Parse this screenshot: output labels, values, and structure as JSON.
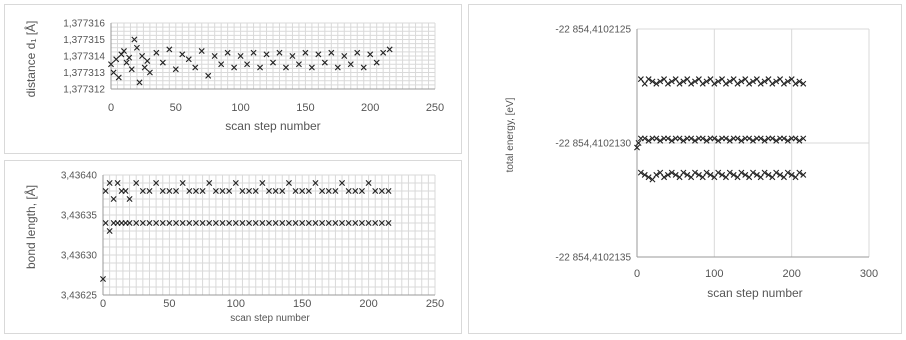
{
  "chart_data": [
    {
      "id": "distance",
      "type": "scatter",
      "xlabel": "scan step number",
      "ylabel": "distance d₁ [Å]",
      "xlim": [
        0,
        250
      ],
      "ylim": [
        1.377312,
        1.377316
      ],
      "xticks": [
        0,
        50,
        100,
        150,
        200,
        250
      ],
      "xtick_labels": [
        "0",
        "50",
        "100",
        "150",
        "200",
        "250"
      ],
      "yticks": [
        1.377312,
        1.377313,
        1.377314,
        1.377315,
        1.377316
      ],
      "ytick_labels": [
        "1,377312",
        "1,377313",
        "1,377314",
        "1,377315",
        "1,377316"
      ],
      "grid": true,
      "marker": "x",
      "series": [
        {
          "x": [
            0,
            2,
            4,
            6,
            8,
            10,
            12,
            14,
            16,
            18,
            20,
            22,
            24,
            26,
            28,
            30,
            35,
            40,
            45,
            50,
            55,
            60,
            65,
            70,
            75,
            80,
            85,
            90,
            95,
            100,
            105,
            110,
            115,
            120,
            125,
            130,
            135,
            140,
            145,
            150,
            155,
            160,
            165,
            170,
            175,
            180,
            185,
            190,
            195,
            200,
            205,
            210,
            215
          ],
          "y": [
            1.3773135,
            1.377313,
            1.3773138,
            1.3773127,
            1.3773141,
            1.3773143,
            1.3773136,
            1.3773139,
            1.3773132,
            1.377315,
            1.3773145,
            1.3773124,
            1.377314,
            1.3773133,
            1.3773137,
            1.377313,
            1.3773142,
            1.3773136,
            1.3773144,
            1.3773132,
            1.3773141,
            1.3773138,
            1.3773133,
            1.3773143,
            1.3773128,
            1.377314,
            1.3773135,
            1.3773142,
            1.3773133,
            1.377314,
            1.3773135,
            1.3773142,
            1.3773133,
            1.3773141,
            1.3773136,
            1.3773142,
            1.3773133,
            1.377314,
            1.3773135,
            1.3773142,
            1.3773133,
            1.3773141,
            1.3773136,
            1.3773142,
            1.3773133,
            1.377314,
            1.3773135,
            1.3773142,
            1.3773133,
            1.3773141,
            1.3773136,
            1.3773142,
            1.3773144
          ]
        }
      ]
    },
    {
      "id": "bond",
      "type": "scatter",
      "xlabel": "scan step number",
      "ylabel": "bond length, [Å]",
      "xlim": [
        0,
        250
      ],
      "ylim": [
        3.43625,
        3.4364
      ],
      "xticks": [
        0,
        50,
        100,
        150,
        200,
        250
      ],
      "xtick_labels": [
        "0",
        "50",
        "100",
        "150",
        "200",
        "250"
      ],
      "yticks": [
        3.43625,
        3.4363,
        3.43635,
        3.4364
      ],
      "ytick_labels": [
        "3,43625",
        "3,43630",
        "3,43635",
        "3,43640"
      ],
      "grid": true,
      "marker": "x",
      "series": [
        {
          "x": [
            0,
            2,
            5,
            8,
            11,
            14,
            17,
            20,
            25,
            30,
            35,
            40,
            45,
            50,
            55,
            60,
            65,
            70,
            75,
            80,
            85,
            90,
            95,
            100,
            105,
            110,
            115,
            120,
            125,
            130,
            135,
            140,
            145,
            150,
            155,
            160,
            165,
            170,
            175,
            180,
            185,
            190,
            195,
            200,
            205,
            210,
            215
          ],
          "y": [
            3.43627,
            3.43638,
            3.43639,
            3.43637,
            3.43639,
            3.43638,
            3.43638,
            3.43637,
            3.43639,
            3.43638,
            3.43638,
            3.43639,
            3.43638,
            3.43638,
            3.43638,
            3.43639,
            3.43638,
            3.43638,
            3.43638,
            3.43639,
            3.43638,
            3.43638,
            3.43638,
            3.43639,
            3.43638,
            3.43638,
            3.43638,
            3.43639,
            3.43638,
            3.43638,
            3.43638,
            3.43639,
            3.43638,
            3.43638,
            3.43638,
            3.43639,
            3.43638,
            3.43638,
            3.43638,
            3.43639,
            3.43638,
            3.43638,
            3.43638,
            3.43639,
            3.43638,
            3.43638,
            3.43638
          ]
        },
        {
          "x": [
            2,
            5,
            8,
            11,
            14,
            17,
            20,
            25,
            30,
            35,
            40,
            45,
            50,
            55,
            60,
            65,
            70,
            75,
            80,
            85,
            90,
            95,
            100,
            105,
            110,
            115,
            120,
            125,
            130,
            135,
            140,
            145,
            150,
            155,
            160,
            165,
            170,
            175,
            180,
            185,
            190,
            195,
            200,
            205,
            210,
            215
          ],
          "y": [
            3.43634,
            3.43633,
            3.43634,
            3.43634,
            3.43634,
            3.43634,
            3.43634,
            3.43634,
            3.43634,
            3.43634,
            3.43634,
            3.43634,
            3.43634,
            3.43634,
            3.43634,
            3.43634,
            3.43634,
            3.43634,
            3.43634,
            3.43634,
            3.43634,
            3.43634,
            3.43634,
            3.43634,
            3.43634,
            3.43634,
            3.43634,
            3.43634,
            3.43634,
            3.43634,
            3.43634,
            3.43634,
            3.43634,
            3.43634,
            3.43634,
            3.43634,
            3.43634,
            3.43634,
            3.43634,
            3.43634,
            3.43634,
            3.43634,
            3.43634,
            3.43634,
            3.43634,
            3.43634
          ]
        }
      ]
    },
    {
      "id": "energy",
      "type": "scatter",
      "xlabel": "scan step number",
      "ylabel": "total energy, [eV]",
      "xlim": [
        0,
        300
      ],
      "ylim": [
        -22854.4102135,
        -22854.4102125
      ],
      "xticks": [
        0,
        100,
        200,
        300
      ],
      "xtick_labels": [
        "0",
        "100",
        "200",
        "300"
      ],
      "yticks": [
        -22854.4102125,
        -22854.410213,
        -22854.4102135
      ],
      "ytick_labels": [
        "-22 854,4102125",
        "-22 854,4102130",
        "-22 854,4102135"
      ],
      "grid": true,
      "marker": "x",
      "series": [
        {
          "x": [
            5,
            10,
            15,
            20,
            25,
            30,
            35,
            40,
            45,
            50,
            55,
            60,
            65,
            70,
            75,
            80,
            85,
            90,
            95,
            100,
            105,
            110,
            115,
            120,
            125,
            130,
            135,
            140,
            145,
            150,
            155,
            160,
            165,
            170,
            175,
            180,
            185,
            190,
            195,
            200,
            205,
            210,
            215
          ],
          "y": [
            -22854.41021272,
            -22854.41021274,
            -22854.41021272,
            -22854.41021273,
            -22854.41021274,
            -22854.41021273,
            -22854.41021272,
            -22854.41021274,
            -22854.41021273,
            -22854.41021272,
            -22854.41021274,
            -22854.41021273,
            -22854.41021272,
            -22854.41021274,
            -22854.41021273,
            -22854.41021272,
            -22854.41021274,
            -22854.41021273,
            -22854.41021272,
            -22854.41021274,
            -22854.41021273,
            -22854.41021272,
            -22854.41021274,
            -22854.41021273,
            -22854.41021272,
            -22854.41021274,
            -22854.41021273,
            -22854.41021272,
            -22854.41021274,
            -22854.41021273,
            -22854.41021272,
            -22854.41021274,
            -22854.41021273,
            -22854.41021272,
            -22854.41021274,
            -22854.41021273,
            -22854.41021272,
            -22854.41021274,
            -22854.41021273,
            -22854.41021272,
            -22854.41021274,
            -22854.41021273,
            -22854.41021274
          ]
        },
        {
          "x": [
            0,
            2,
            5,
            10,
            15,
            20,
            25,
            30,
            35,
            40,
            45,
            50,
            55,
            60,
            65,
            70,
            75,
            80,
            85,
            90,
            95,
            100,
            105,
            110,
            115,
            120,
            125,
            130,
            135,
            140,
            145,
            150,
            155,
            160,
            165,
            170,
            175,
            180,
            185,
            190,
            195,
            200,
            205,
            210,
            215
          ],
          "y": [
            -22854.41021302,
            -22854.410213,
            -22854.41021298,
            -22854.41021298,
            -22854.41021299,
            -22854.41021298,
            -22854.41021298,
            -22854.41021299,
            -22854.41021298,
            -22854.41021298,
            -22854.41021299,
            -22854.41021298,
            -22854.41021298,
            -22854.41021299,
            -22854.41021298,
            -22854.41021298,
            -22854.41021299,
            -22854.41021298,
            -22854.41021298,
            -22854.41021299,
            -22854.41021298,
            -22854.41021298,
            -22854.41021299,
            -22854.41021298,
            -22854.41021298,
            -22854.41021299,
            -22854.41021298,
            -22854.41021298,
            -22854.41021299,
            -22854.41021298,
            -22854.41021298,
            -22854.41021299,
            -22854.41021298,
            -22854.41021298,
            -22854.41021299,
            -22854.41021298,
            -22854.41021298,
            -22854.41021299,
            -22854.41021298,
            -22854.41021298,
            -22854.41021299,
            -22854.41021298,
            -22854.41021298,
            -22854.41021299,
            -22854.41021298
          ]
        },
        {
          "x": [
            5,
            10,
            15,
            20,
            25,
            30,
            35,
            40,
            45,
            50,
            55,
            60,
            65,
            70,
            75,
            80,
            85,
            90,
            95,
            100,
            105,
            110,
            115,
            120,
            125,
            130,
            135,
            140,
            145,
            150,
            155,
            160,
            165,
            170,
            175,
            180,
            185,
            190,
            195,
            200,
            205,
            210,
            215
          ],
          "y": [
            -22854.41021313,
            -22854.41021314,
            -22854.41021315,
            -22854.41021316,
            -22854.41021314,
            -22854.41021313,
            -22854.41021315,
            -22854.41021314,
            -22854.41021313,
            -22854.41021314,
            -22854.41021315,
            -22854.41021313,
            -22854.41021314,
            -22854.41021315,
            -22854.41021313,
            -22854.41021314,
            -22854.41021315,
            -22854.41021313,
            -22854.41021314,
            -22854.41021315,
            -22854.41021313,
            -22854.41021314,
            -22854.41021315,
            -22854.41021313,
            -22854.41021314,
            -22854.41021315,
            -22854.41021313,
            -22854.41021314,
            -22854.41021315,
            -22854.41021313,
            -22854.41021314,
            -22854.41021315,
            -22854.41021313,
            -22854.41021314,
            -22854.41021315,
            -22854.41021313,
            -22854.41021314,
            -22854.41021315,
            -22854.41021313,
            -22854.41021314,
            -22854.41021315,
            -22854.41021313,
            -22854.41021314
          ]
        }
      ]
    }
  ]
}
